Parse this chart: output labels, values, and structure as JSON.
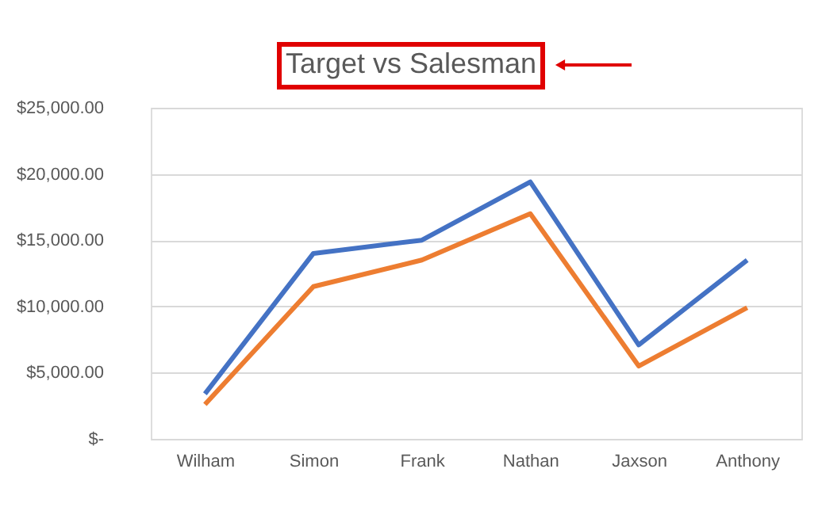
{
  "chart_data": {
    "type": "line",
    "title": "Target vs Salesman",
    "categories": [
      "Wilham",
      "Simon",
      "Frank",
      "Nathan",
      "Jaxson",
      "Anthony"
    ],
    "series": [
      {
        "color": "#4472c4",
        "values": [
          3400,
          14000,
          15000,
          19400,
          7100,
          13500
        ]
      },
      {
        "color": "#ed7d31",
        "values": [
          2600,
          11500,
          13500,
          17000,
          5500,
          9900
        ]
      }
    ],
    "ylim": [
      0,
      25000
    ],
    "yticks": [
      {
        "value": 0,
        "label": "$-"
      },
      {
        "value": 5000,
        "label": "$5,000.00"
      },
      {
        "value": 10000,
        "label": "$10,000.00"
      },
      {
        "value": 15000,
        "label": "$15,000.00"
      },
      {
        "value": 20000,
        "label": "$20,000.00"
      },
      {
        "value": 25000,
        "label": "$25,000.00"
      }
    ],
    "grid": "y",
    "legend": false,
    "marker": "none",
    "line_style": "solid"
  }
}
